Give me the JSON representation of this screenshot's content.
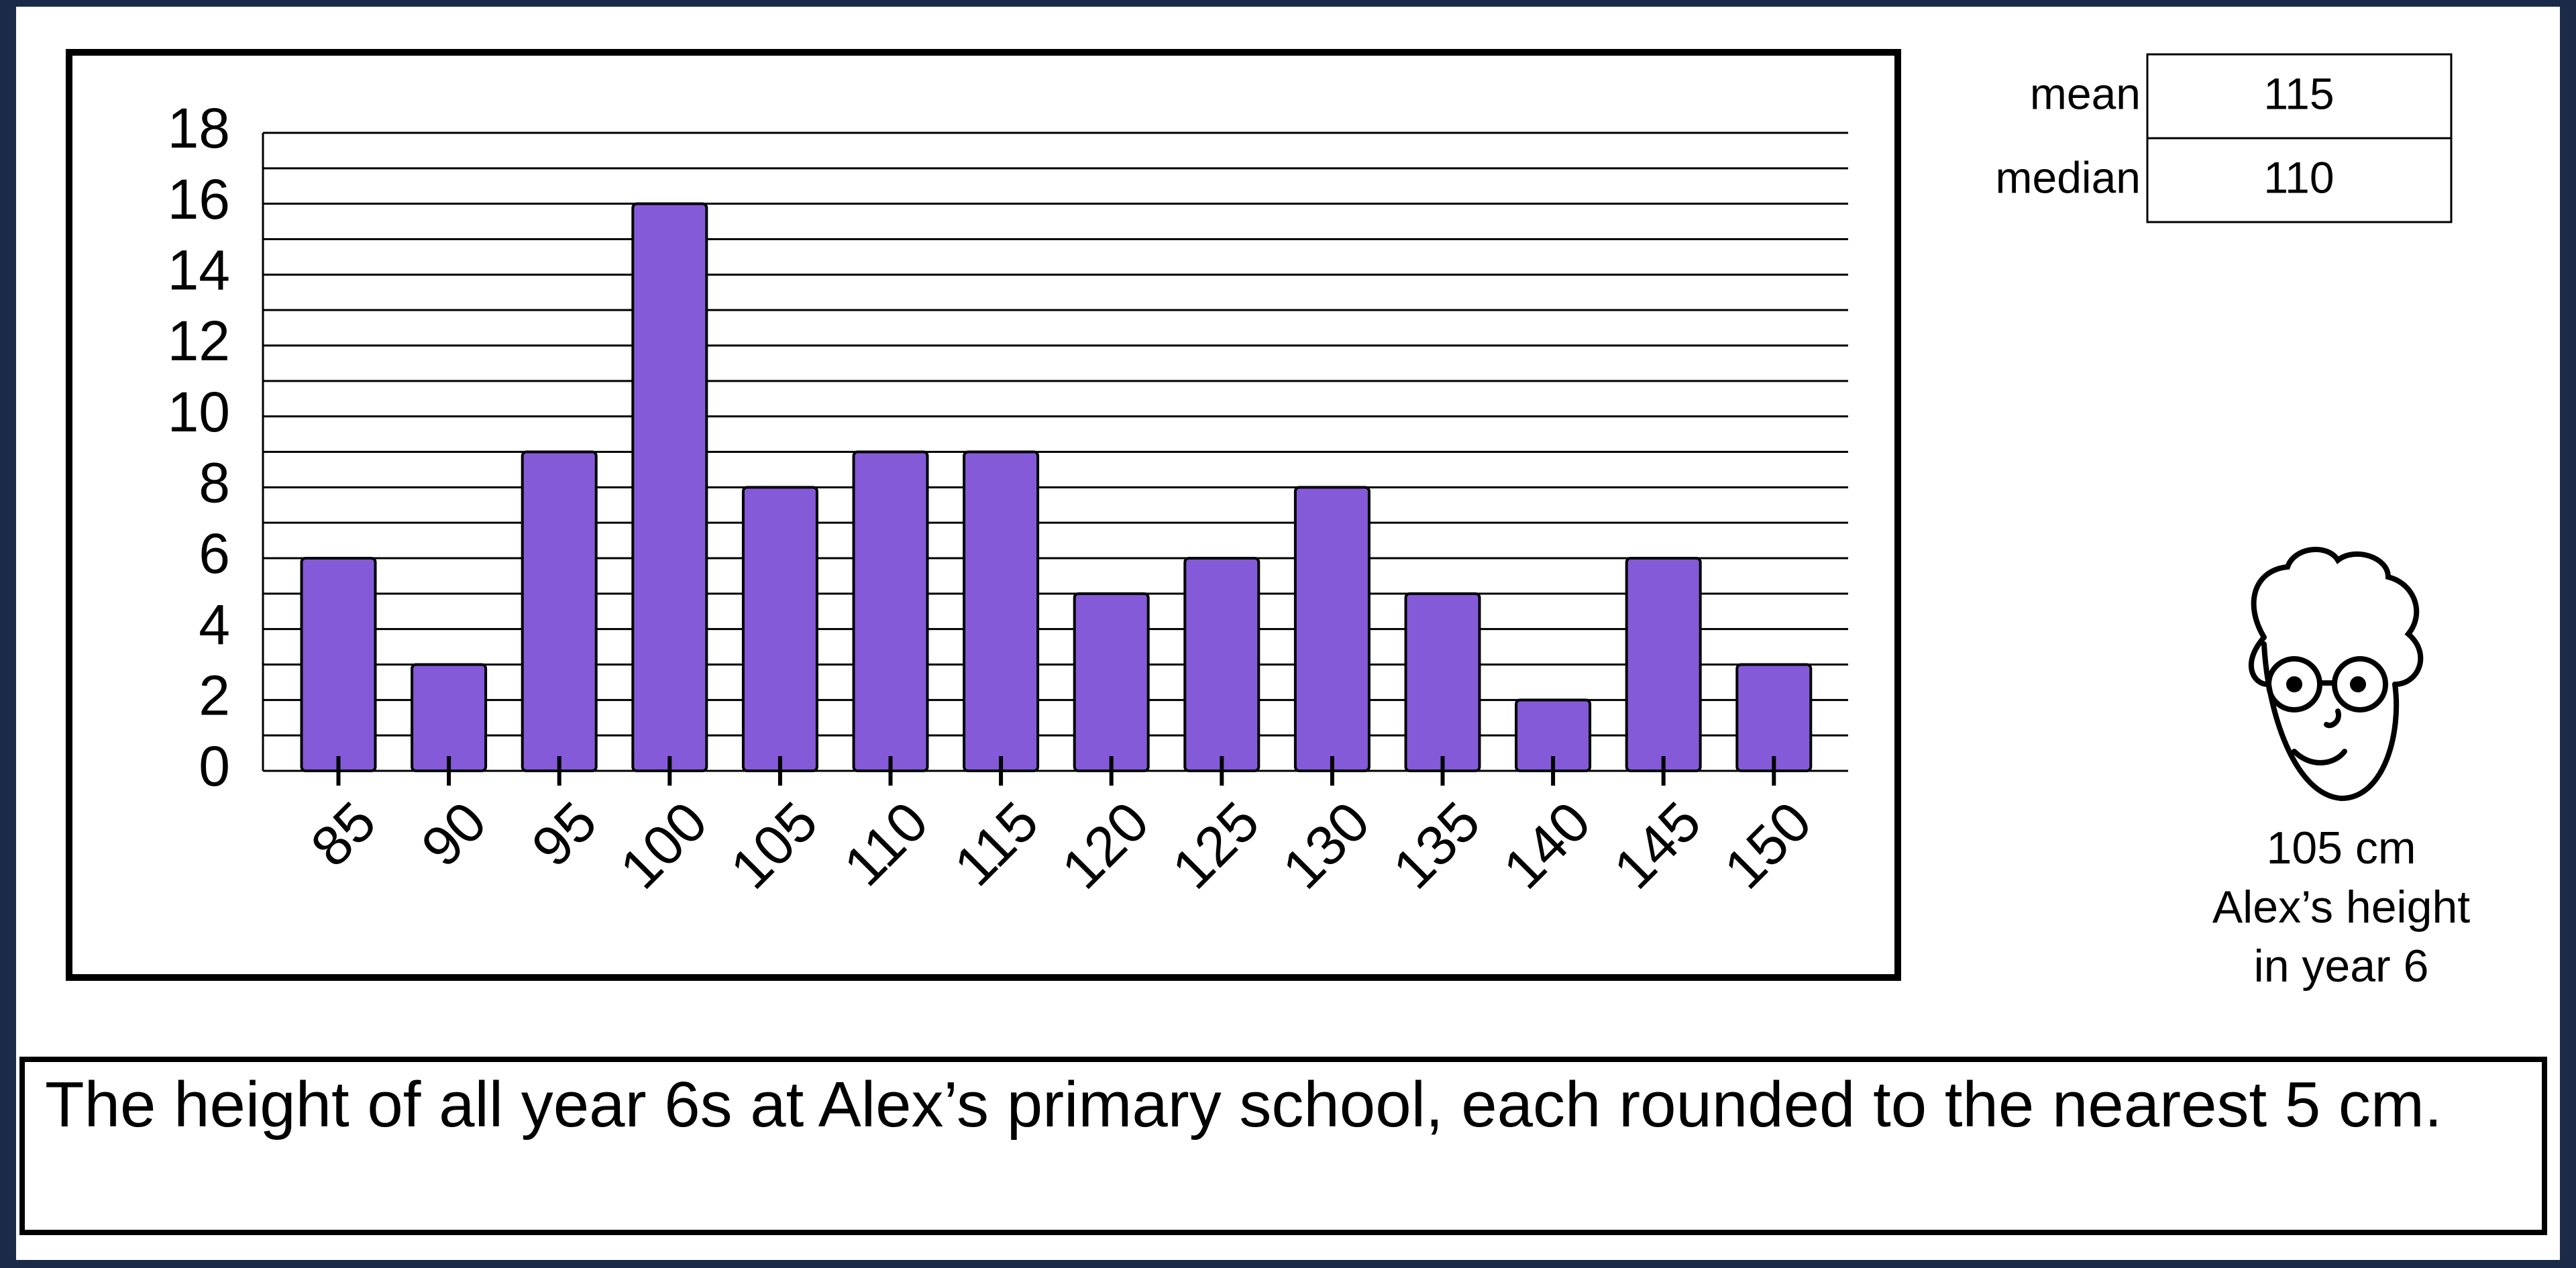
{
  "chart_data": {
    "type": "bar",
    "categories": [
      "85",
      "90",
      "95",
      "100",
      "105",
      "110",
      "115",
      "120",
      "125",
      "130",
      "135",
      "140",
      "145",
      "150"
    ],
    "values": [
      6,
      3,
      9,
      16,
      8,
      9,
      9,
      5,
      6,
      8,
      5,
      2,
      6,
      3
    ],
    "color": "#845ad8",
    "ylim": [
      0,
      18
    ],
    "yticks": [
      0,
      2,
      4,
      6,
      8,
      10,
      12,
      14,
      16,
      18
    ],
    "minor_yticks": [
      1,
      3,
      5,
      7,
      9,
      11,
      13,
      15,
      17
    ],
    "grid": true
  },
  "stats": {
    "rows": [
      [
        "mean",
        "115"
      ],
      [
        "median",
        "110"
      ]
    ]
  },
  "figure_label": [
    "105 cm",
    "Alex’s height",
    "in year 6"
  ],
  "caption": "The height of all year 6s at Alex’s primary school, each rounded to the nearest 5 cm."
}
